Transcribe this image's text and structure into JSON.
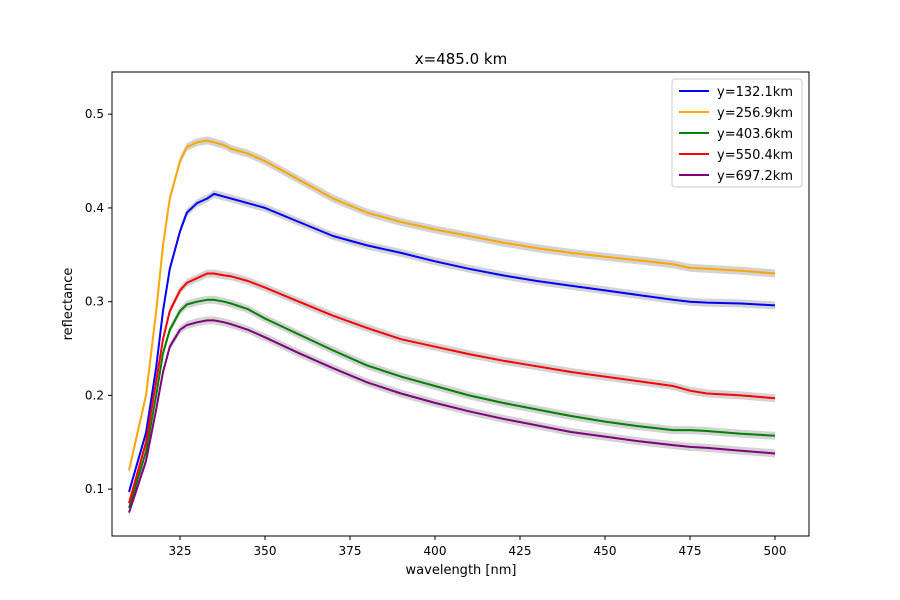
{
  "chart_data": {
    "type": "line",
    "title": "x=485.0 km",
    "xlabel": "wavelength [nm]",
    "ylabel": "reflectance",
    "xlim": [
      305,
      510
    ],
    "ylim": [
      0.05,
      0.545
    ],
    "xticks": [
      325,
      350,
      375,
      400,
      425,
      450,
      475,
      500
    ],
    "yticks": [
      0.1,
      0.2,
      0.3,
      0.4,
      0.5
    ],
    "grid": false,
    "legend_position": "upper right",
    "uncertainty_band_color": "#d3d3d3",
    "series": [
      {
        "name": "y=132.1km",
        "color": "#0000ff",
        "x": [
          310,
          315,
          318,
          320,
          322,
          325,
          327,
          330,
          333,
          335,
          338,
          340,
          345,
          350,
          360,
          370,
          380,
          390,
          400,
          410,
          420,
          430,
          440,
          450,
          460,
          470,
          475,
          480,
          490,
          500
        ],
        "y": [
          0.097,
          0.16,
          0.23,
          0.29,
          0.335,
          0.375,
          0.395,
          0.405,
          0.41,
          0.415,
          0.412,
          0.41,
          0.405,
          0.4,
          0.385,
          0.37,
          0.36,
          0.352,
          0.343,
          0.335,
          0.328,
          0.322,
          0.317,
          0.312,
          0.307,
          0.302,
          0.3,
          0.299,
          0.298,
          0.296
        ]
      },
      {
        "name": "y=256.9km",
        "color": "#ffa500",
        "x": [
          310,
          315,
          318,
          320,
          322,
          325,
          327,
          330,
          333,
          335,
          338,
          340,
          345,
          350,
          360,
          370,
          380,
          390,
          400,
          410,
          420,
          430,
          440,
          450,
          460,
          470,
          475,
          480,
          490,
          500
        ],
        "y": [
          0.12,
          0.2,
          0.29,
          0.36,
          0.41,
          0.45,
          0.465,
          0.47,
          0.472,
          0.47,
          0.467,
          0.463,
          0.458,
          0.45,
          0.43,
          0.41,
          0.395,
          0.385,
          0.377,
          0.37,
          0.363,
          0.357,
          0.352,
          0.348,
          0.344,
          0.34,
          0.336,
          0.335,
          0.333,
          0.33
        ]
      },
      {
        "name": "y=403.6km",
        "color": "#008000",
        "x": [
          310,
          315,
          318,
          320,
          322,
          325,
          327,
          330,
          333,
          335,
          338,
          340,
          345,
          350,
          360,
          370,
          380,
          390,
          400,
          410,
          420,
          430,
          440,
          450,
          460,
          470,
          475,
          480,
          490,
          500
        ],
        "y": [
          0.08,
          0.14,
          0.2,
          0.245,
          0.27,
          0.29,
          0.297,
          0.3,
          0.302,
          0.302,
          0.3,
          0.298,
          0.292,
          0.282,
          0.265,
          0.248,
          0.232,
          0.22,
          0.21,
          0.2,
          0.192,
          0.185,
          0.178,
          0.172,
          0.167,
          0.163,
          0.163,
          0.162,
          0.159,
          0.157
        ]
      },
      {
        "name": "y=550.4km",
        "color": "#ff0000",
        "x": [
          310,
          315,
          318,
          320,
          322,
          325,
          327,
          330,
          333,
          335,
          338,
          340,
          345,
          350,
          360,
          370,
          380,
          390,
          400,
          410,
          420,
          430,
          440,
          450,
          460,
          470,
          475,
          480,
          490,
          500
        ],
        "y": [
          0.085,
          0.15,
          0.215,
          0.26,
          0.29,
          0.312,
          0.32,
          0.325,
          0.33,
          0.33,
          0.328,
          0.327,
          0.322,
          0.315,
          0.3,
          0.285,
          0.272,
          0.26,
          0.252,
          0.244,
          0.237,
          0.231,
          0.225,
          0.22,
          0.215,
          0.21,
          0.205,
          0.202,
          0.2,
          0.197
        ]
      },
      {
        "name": "y=697.2km",
        "color": "#800080",
        "x": [
          310,
          315,
          318,
          320,
          322,
          325,
          327,
          330,
          333,
          335,
          338,
          340,
          345,
          350,
          360,
          370,
          380,
          390,
          400,
          410,
          420,
          430,
          440,
          450,
          460,
          470,
          475,
          480,
          490,
          500
        ],
        "y": [
          0.075,
          0.13,
          0.185,
          0.225,
          0.252,
          0.27,
          0.275,
          0.278,
          0.28,
          0.28,
          0.278,
          0.276,
          0.27,
          0.262,
          0.245,
          0.229,
          0.214,
          0.202,
          0.192,
          0.183,
          0.175,
          0.168,
          0.161,
          0.156,
          0.151,
          0.147,
          0.145,
          0.144,
          0.141,
          0.138
        ]
      }
    ]
  }
}
